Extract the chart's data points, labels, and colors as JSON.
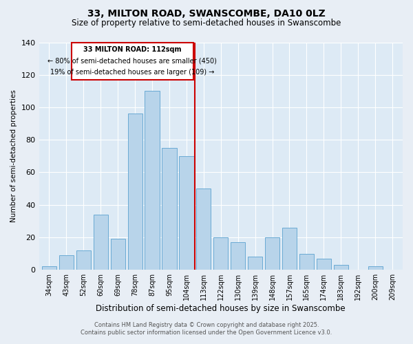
{
  "title": "33, MILTON ROAD, SWANSCOMBE, DA10 0LZ",
  "subtitle": "Size of property relative to semi-detached houses in Swanscombe",
  "xlabel": "Distribution of semi-detached houses by size in Swanscombe",
  "ylabel": "Number of semi-detached properties",
  "categories": [
    "34sqm",
    "43sqm",
    "52sqm",
    "60sqm",
    "69sqm",
    "78sqm",
    "87sqm",
    "95sqm",
    "104sqm",
    "113sqm",
    "122sqm",
    "130sqm",
    "139sqm",
    "148sqm",
    "157sqm",
    "165sqm",
    "174sqm",
    "183sqm",
    "192sqm",
    "200sqm",
    "209sqm"
  ],
  "values": [
    2,
    9,
    12,
    34,
    19,
    96,
    110,
    75,
    70,
    50,
    20,
    17,
    8,
    20,
    26,
    10,
    7,
    3,
    0,
    2,
    0
  ],
  "bar_color": "#b8d4ea",
  "bar_edge_color": "#6aaad4",
  "vline_color": "#cc0000",
  "annotation_title": "33 MILTON ROAD: 112sqm",
  "annotation_line1": "← 80% of semi-detached houses are smaller (450)",
  "annotation_line2": "19% of semi-detached houses are larger (109) →",
  "annotation_box_color": "#cc0000",
  "footer1": "Contains HM Land Registry data © Crown copyright and database right 2025.",
  "footer2": "Contains public sector information licensed under the Open Government Licence v3.0.",
  "bg_color": "#e8eef5",
  "plot_bg_color": "#ddeaf5",
  "ylim": [
    0,
    140
  ],
  "yticks": [
    0,
    20,
    40,
    60,
    80,
    100,
    120,
    140
  ]
}
